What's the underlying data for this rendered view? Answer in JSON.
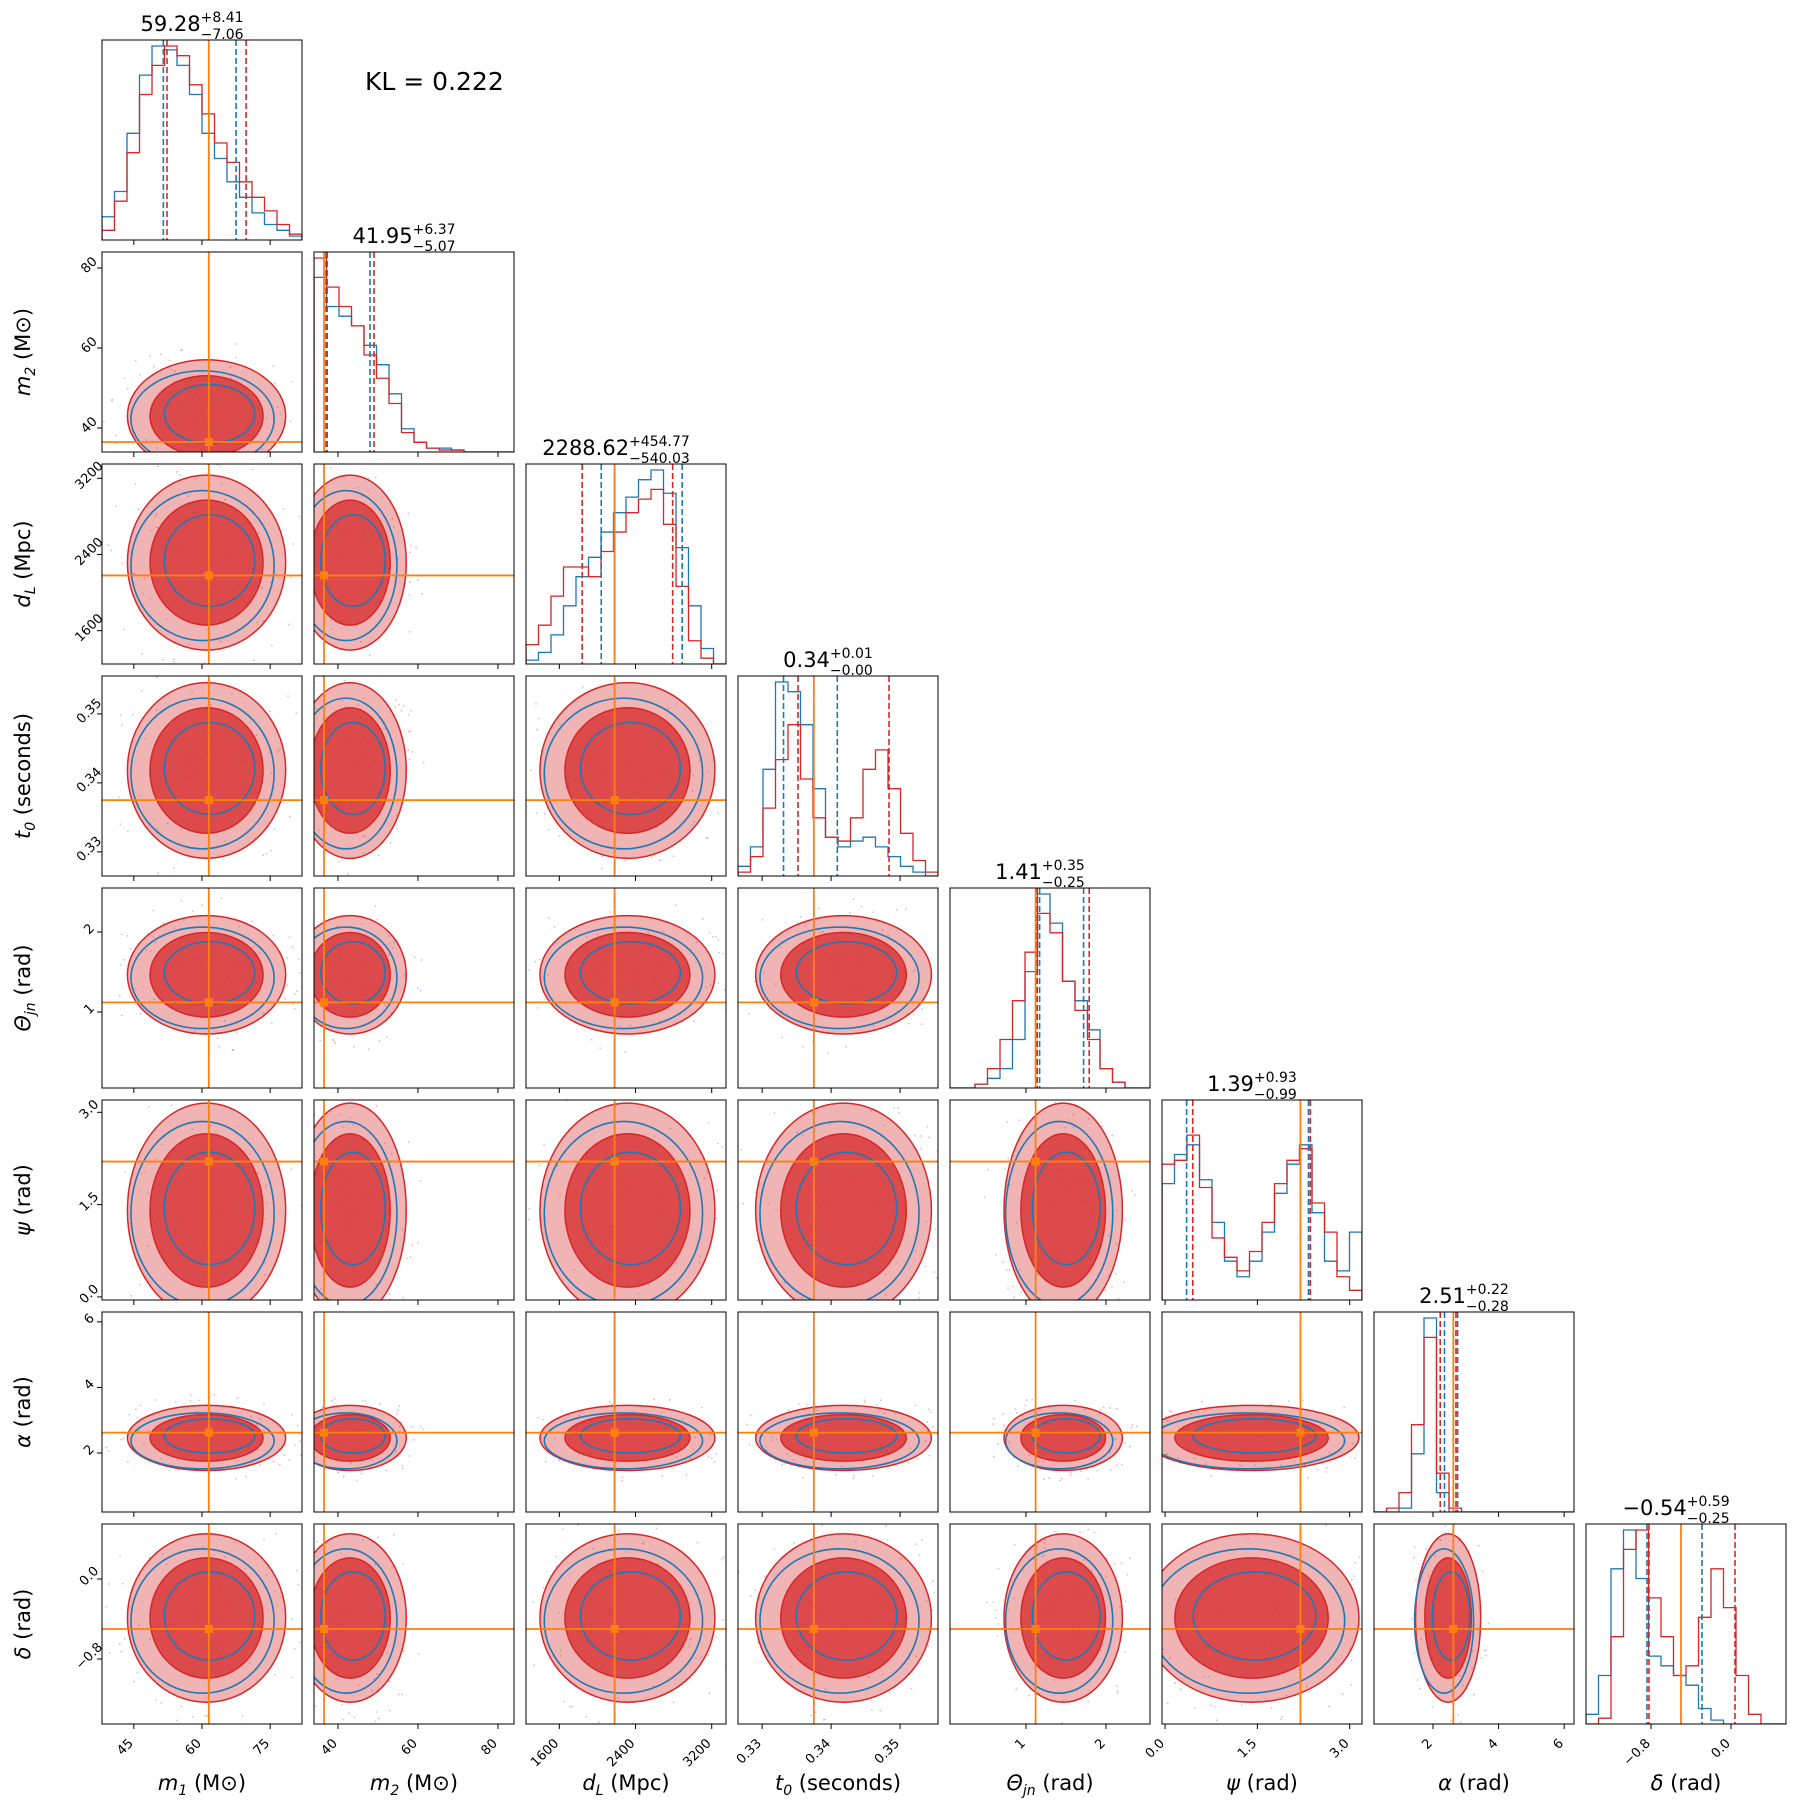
{
  "chart_data": {
    "type": "corner",
    "annotation": "KL = 0.222",
    "colors": {
      "series_a": "#1f77b4",
      "series_b": "#d62728",
      "truth": "#ff7f0e"
    },
    "parameters": [
      {
        "id": "m1",
        "label_main": "m",
        "label_sub": "1",
        "label_unit": " (M⊙)",
        "range": [
          38,
          82
        ],
        "ticks": [
          45,
          60,
          75
        ],
        "tick_labels": [
          "45",
          "60",
          "75"
        ],
        "truth": 61.5,
        "title": {
          "median": "59.28",
          "plus": "+8.41",
          "minus": "−7.06"
        },
        "quantiles_a": [
          51.5,
          67.5
        ],
        "quantiles_b": [
          52.3,
          69.7
        ]
      },
      {
        "id": "m2",
        "label_main": "m",
        "label_sub": "2",
        "label_unit": " (M⊙)",
        "range": [
          34,
          84
        ],
        "ticks": [
          40,
          60,
          80
        ],
        "tick_labels": [
          "40",
          "60",
          "80"
        ],
        "truth": 36.5,
        "title": {
          "median": "41.95",
          "plus": "+6.37",
          "minus": "−5.07"
        },
        "quantiles_a": [
          37.3,
          48.0
        ],
        "quantiles_b": [
          37.0,
          49.0
        ]
      },
      {
        "id": "dl",
        "label_main": "d",
        "label_sub": "L",
        "label_unit": " (Mpc)",
        "range": [
          1250,
          3350
        ],
        "ticks": [
          1600,
          2400,
          3200
        ],
        "tick_labels": [
          "1600",
          "2400",
          "3200"
        ],
        "truth": 2180,
        "title": {
          "median": "2288.62",
          "plus": "+454.77",
          "minus": "−540.03"
        },
        "quantiles_a": [
          2040,
          2890
        ],
        "quantiles_b": [
          1840,
          2790
        ]
      },
      {
        "id": "t0",
        "label_main": "t",
        "label_sub": "0",
        "label_unit": " (seconds)",
        "range": [
          0.3265,
          0.3555
        ],
        "ticks": [
          0.33,
          0.34,
          0.35
        ],
        "tick_labels": [
          "0.33",
          "0.34",
          "0.35"
        ],
        "truth": 0.3375,
        "title": {
          "median": "0.34",
          "plus": "+0.01",
          "minus": "−0.00"
        },
        "quantiles_a": [
          0.3331,
          0.3409
        ],
        "quantiles_b": [
          0.3352,
          0.3484
        ]
      },
      {
        "id": "theta",
        "label_main": "Θ",
        "label_sub": "jn",
        "label_unit": " (rad)",
        "range": [
          0.05,
          2.55
        ],
        "ticks": [
          1,
          2
        ],
        "tick_labels": [
          "1",
          "2"
        ],
        "truth": 1.12,
        "title": {
          "median": "1.41",
          "plus": "+0.35",
          "minus": "−0.25"
        },
        "quantiles_a": [
          1.17,
          1.72
        ],
        "quantiles_b": [
          1.14,
          1.79
        ]
      },
      {
        "id": "psi",
        "label_main": "ψ",
        "label_sub": "",
        "label_unit": " (rad)",
        "range": [
          -0.05,
          3.2
        ],
        "ticks": [
          0.0,
          1.5,
          3.0
        ],
        "tick_labels": [
          "0.0",
          "1.5",
          "3.0"
        ],
        "truth": 2.2,
        "title": {
          "median": "1.39",
          "plus": "+0.93",
          "minus": "−0.99"
        },
        "quantiles_a": [
          0.35,
          2.33
        ],
        "quantiles_b": [
          0.45,
          2.36
        ]
      },
      {
        "id": "alpha",
        "label_main": "α",
        "label_sub": "",
        "label_unit": " (rad)",
        "range": [
          0.2,
          6.3
        ],
        "ticks": [
          2,
          4,
          6
        ],
        "tick_labels": [
          "2",
          "4",
          "6"
        ],
        "truth": 2.62,
        "title": {
          "median": "2.51",
          "plus": "+0.22",
          "minus": "−0.28"
        },
        "quantiles_a": [
          2.35,
          2.75
        ],
        "quantiles_b": [
          2.22,
          2.7
        ]
      },
      {
        "id": "delta",
        "label_main": "δ",
        "label_sub": "",
        "label_unit": " (rad)",
        "range": [
          -1.45,
          0.55
        ],
        "ticks": [
          -0.8,
          0.0
        ],
        "tick_labels": [
          "−0.8",
          "0.0"
        ],
        "truth": -0.5,
        "title": {
          "median": "−0.54",
          "plus": "+0.59",
          "minus": "−0.25"
        },
        "quantiles_a": [
          -0.84,
          -0.29
        ],
        "quantiles_b": [
          -0.82,
          0.04
        ]
      }
    ],
    "hist_a": [
      [
        [
          0.12,
          0.25,
          0.55,
          0.85,
          1.0,
          0.98,
          0.9,
          0.75,
          0.55,
          0.42,
          0.3,
          0.22,
          0.14,
          0.08,
          0.05,
          0.02
        ]
      ],
      [
        [
          0.9,
          0.75,
          0.7,
          0.65,
          0.55,
          0.45,
          0.3,
          0.12,
          0.05,
          0.02,
          0.02,
          0.01,
          0.0,
          0.0,
          0.0,
          0.0
        ]
      ],
      [
        [
          0.02,
          0.06,
          0.15,
          0.3,
          0.45,
          0.55,
          0.68,
          0.78,
          0.86,
          0.95,
          1.0,
          0.88,
          0.6,
          0.3,
          0.08,
          0.0
        ]
      ],
      [
        [
          0.05,
          0.15,
          0.55,
          1.0,
          0.95,
          0.78,
          0.45,
          0.2,
          0.15,
          0.18,
          0.2,
          0.15,
          0.1,
          0.05,
          0.02,
          0.0
        ]
      ],
      [
        [
          0.0,
          0.0,
          0.02,
          0.05,
          0.1,
          0.25,
          0.6,
          1.0,
          0.85,
          0.55,
          0.45,
          0.3,
          0.1,
          0.03,
          0.0,
          0.0
        ]
      ],
      [
        [
          0.6,
          0.75,
          0.8,
          0.62,
          0.4,
          0.2,
          0.12,
          0.2,
          0.35,
          0.55,
          0.7,
          0.8,
          0.45,
          0.2,
          0.15,
          0.35
        ]
      ],
      [
        [
          0.0,
          0.0,
          0.02,
          0.3,
          1.0,
          0.1,
          0.0,
          0.0,
          0.0,
          0.0,
          0.0,
          0.0,
          0.0,
          0.0,
          0.0,
          0.0
        ]
      ],
      [
        [
          0.05,
          0.25,
          0.8,
          1.0,
          0.75,
          0.35,
          0.3,
          0.25,
          0.2,
          0.08,
          0.02,
          0.0,
          0.0,
          0.0,
          0.0,
          0.0
        ]
      ]
    ],
    "hist_b": [
      [
        [
          0.05,
          0.2,
          0.45,
          0.75,
          0.9,
          1.0,
          0.95,
          0.8,
          0.65,
          0.5,
          0.4,
          0.3,
          0.22,
          0.15,
          0.08,
          0.03
        ]
      ],
      [
        [
          1.0,
          0.85,
          0.75,
          0.65,
          0.5,
          0.38,
          0.25,
          0.1,
          0.05,
          0.02,
          0.01,
          0.01,
          0.0,
          0.0,
          0.0,
          0.0
        ]
      ],
      [
        [
          0.1,
          0.2,
          0.35,
          0.5,
          0.5,
          0.45,
          0.58,
          0.68,
          0.78,
          0.85,
          0.9,
          0.72,
          0.4,
          0.12,
          0.03,
          0.0
        ]
      ],
      [
        [
          0.02,
          0.1,
          0.35,
          0.6,
          0.78,
          0.5,
          0.3,
          0.2,
          0.18,
          0.3,
          0.55,
          0.65,
          0.45,
          0.22,
          0.08,
          0.02
        ]
      ],
      [
        [
          0.0,
          0.0,
          0.02,
          0.1,
          0.25,
          0.45,
          0.7,
          0.9,
          0.8,
          0.55,
          0.4,
          0.25,
          0.1,
          0.03,
          0.0,
          0.0
        ]
      ],
      [
        [
          0.7,
          0.72,
          0.85,
          0.58,
          0.32,
          0.22,
          0.15,
          0.25,
          0.4,
          0.6,
          0.72,
          0.78,
          0.5,
          0.35,
          0.12,
          0.05
        ]
      ],
      [
        [
          0.0,
          0.02,
          0.1,
          0.45,
          0.9,
          0.2,
          0.02,
          0.0,
          0.0,
          0.0,
          0.0,
          0.0,
          0.0,
          0.0,
          0.0,
          0.0
        ]
      ],
      [
        [
          0.0,
          0.03,
          0.45,
          0.9,
          1.0,
          0.65,
          0.45,
          0.25,
          0.3,
          0.55,
          0.8,
          0.6,
          0.25,
          0.05,
          0.0,
          0.0
        ]
      ]
    ],
    "axis_ranges_note": "log scale: none",
    "grid": false
  }
}
